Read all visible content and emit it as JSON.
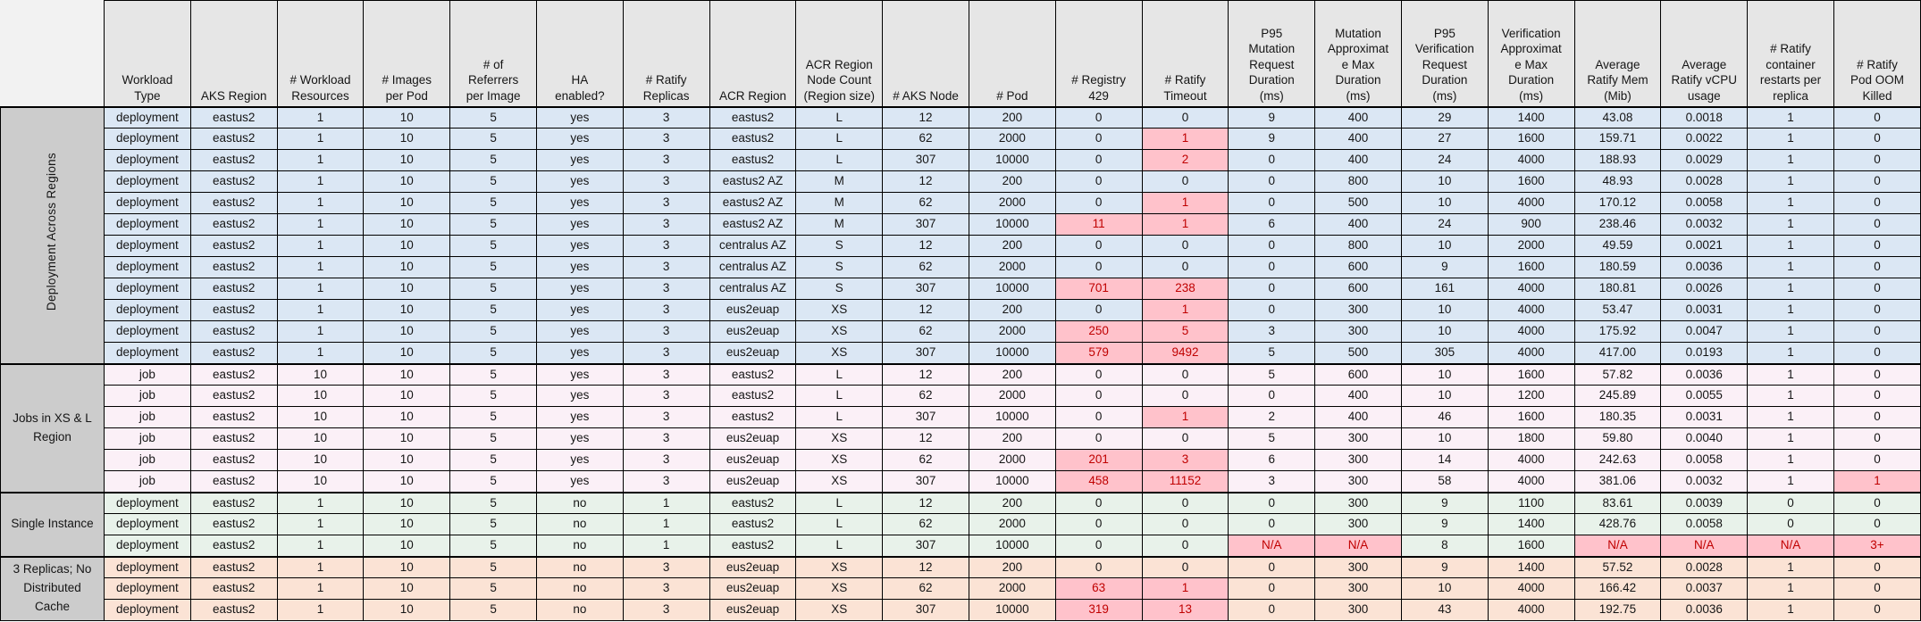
{
  "table": {
    "title": "Ratify performance benchmark results table",
    "colors": {
      "header_fill": "#E6E6E6",
      "corner_fill": "#F2F2F2",
      "group_label_fill": "#CCCCCC",
      "highlight_fill": "#FFC2CB",
      "highlight_text": "#C00000",
      "border": "#000000"
    },
    "columns": [
      {
        "key": "workload-type",
        "label": "Workload\nType"
      },
      {
        "key": "aks-region",
        "label": "AKS Region"
      },
      {
        "key": "workload-resources",
        "label": "# Workload\nResources"
      },
      {
        "key": "images-per-pod",
        "label": "# Images\nper Pod"
      },
      {
        "key": "referrers-per-image",
        "label": "# of\nReferrers\nper Image"
      },
      {
        "key": "ha-enabled",
        "label": "HA\nenabled?"
      },
      {
        "key": "ratify-replicas",
        "label": "# Ratify\nReplicas"
      },
      {
        "key": "acr-region",
        "label": "ACR Region"
      },
      {
        "key": "acr-region-node-count",
        "label": "ACR Region\nNode Count\n(Region size)"
      },
      {
        "key": "aks-node",
        "label": "# AKS Node"
      },
      {
        "key": "pod",
        "label": "# Pod"
      },
      {
        "key": "registry-429",
        "label": "# Registry\n429"
      },
      {
        "key": "ratify-timeout",
        "label": "# Ratify\nTimeout"
      },
      {
        "key": "p95-mutation-request-duration",
        "label": "P95\nMutation\nRequest\nDuration\n(ms)"
      },
      {
        "key": "mutation-approximate-max-duration",
        "label": "Mutation\nApproximat\ne Max\nDuration\n(ms)"
      },
      {
        "key": "p95-verification-request-duration",
        "label": "P95\nVerification\nRequest\nDuration\n(ms)"
      },
      {
        "key": "verification-approximate-max-duration",
        "label": "Verification\nApproximat\ne Max\nDuration\n(ms)"
      },
      {
        "key": "average-ratify-mem",
        "label": "Average\nRatify Mem\n(Mib)"
      },
      {
        "key": "average-ratify-vcpu",
        "label": "Average\nRatify vCPU\nusage"
      },
      {
        "key": "ratify-container-restarts",
        "label": "# Ratify\ncontainer\nrestarts per\nreplica"
      },
      {
        "key": "ratify-pod-oom-killed",
        "label": "# Ratify\nPod OOM\nKilled"
      }
    ],
    "groups": [
      {
        "label": "Deployment Across Regions",
        "label_orientation": "vertical",
        "fill": "#DBE7F4",
        "rows": [
          {
            "cells": [
              "deployment",
              "eastus2",
              "1",
              "10",
              "5",
              "yes",
              "3",
              "eastus2",
              "L",
              "12",
              "200",
              "0",
              "0",
              "9",
              "400",
              "29",
              "1400",
              "43.08",
              "0.0018",
              "1",
              "0"
            ],
            "highlighted": []
          },
          {
            "cells": [
              "deployment",
              "eastus2",
              "1",
              "10",
              "5",
              "yes",
              "3",
              "eastus2",
              "L",
              "62",
              "2000",
              "0",
              "1",
              "9",
              "400",
              "27",
              "1600",
              "159.71",
              "0.0022",
              "1",
              "0"
            ],
            "highlighted": [
              12
            ]
          },
          {
            "cells": [
              "deployment",
              "eastus2",
              "1",
              "10",
              "5",
              "yes",
              "3",
              "eastus2",
              "L",
              "307",
              "10000",
              "0",
              "2",
              "0",
              "400",
              "24",
              "4000",
              "188.93",
              "0.0029",
              "1",
              "0"
            ],
            "highlighted": [
              12
            ]
          },
          {
            "cells": [
              "deployment",
              "eastus2",
              "1",
              "10",
              "5",
              "yes",
              "3",
              "eastus2 AZ",
              "M",
              "12",
              "200",
              "0",
              "0",
              "0",
              "800",
              "10",
              "1600",
              "48.93",
              "0.0028",
              "1",
              "0"
            ],
            "highlighted": []
          },
          {
            "cells": [
              "deployment",
              "eastus2",
              "1",
              "10",
              "5",
              "yes",
              "3",
              "eastus2 AZ",
              "M",
              "62",
              "2000",
              "0",
              "1",
              "0",
              "500",
              "10",
              "4000",
              "170.12",
              "0.0058",
              "1",
              "0"
            ],
            "highlighted": [
              12
            ]
          },
          {
            "cells": [
              "deployment",
              "eastus2",
              "1",
              "10",
              "5",
              "yes",
              "3",
              "eastus2 AZ",
              "M",
              "307",
              "10000",
              "11",
              "1",
              "6",
              "400",
              "24",
              "900",
              "238.46",
              "0.0032",
              "1",
              "0"
            ],
            "highlighted": [
              11,
              12
            ]
          },
          {
            "cells": [
              "deployment",
              "eastus2",
              "1",
              "10",
              "5",
              "yes",
              "3",
              "centralus AZ",
              "S",
              "12",
              "200",
              "0",
              "0",
              "0",
              "800",
              "10",
              "2000",
              "49.59",
              "0.0021",
              "1",
              "0"
            ],
            "highlighted": []
          },
          {
            "cells": [
              "deployment",
              "eastus2",
              "1",
              "10",
              "5",
              "yes",
              "3",
              "centralus AZ",
              "S",
              "62",
              "2000",
              "0",
              "0",
              "0",
              "600",
              "9",
              "1600",
              "180.59",
              "0.0036",
              "1",
              "0"
            ],
            "highlighted": []
          },
          {
            "cells": [
              "deployment",
              "eastus2",
              "1",
              "10",
              "5",
              "yes",
              "3",
              "centralus AZ",
              "S",
              "307",
              "10000",
              "701",
              "238",
              "0",
              "600",
              "161",
              "4000",
              "180.81",
              "0.0026",
              "1",
              "0"
            ],
            "highlighted": [
              11,
              12
            ]
          },
          {
            "cells": [
              "deployment",
              "eastus2",
              "1",
              "10",
              "5",
              "yes",
              "3",
              "eus2euap",
              "XS",
              "12",
              "200",
              "0",
              "1",
              "0",
              "300",
              "10",
              "4000",
              "53.47",
              "0.0031",
              "1",
              "0"
            ],
            "highlighted": [
              12
            ]
          },
          {
            "cells": [
              "deployment",
              "eastus2",
              "1",
              "10",
              "5",
              "yes",
              "3",
              "eus2euap",
              "XS",
              "62",
              "2000",
              "250",
              "5",
              "3",
              "300",
              "10",
              "4000",
              "175.92",
              "0.0047",
              "1",
              "0"
            ],
            "highlighted": [
              11,
              12
            ]
          },
          {
            "cells": [
              "deployment",
              "eastus2",
              "1",
              "10",
              "5",
              "yes",
              "3",
              "eus2euap",
              "XS",
              "307",
              "10000",
              "579",
              "9492",
              "5",
              "500",
              "305",
              "4000",
              "417.00",
              "0.0193",
              "1",
              "0"
            ],
            "highlighted": [
              11,
              12
            ]
          }
        ]
      },
      {
        "label": "Jobs in XS & L\nRegion",
        "label_orientation": "horizontal",
        "fill": "#FBF0F7",
        "rows": [
          {
            "cells": [
              "job",
              "eastus2",
              "10",
              "10",
              "5",
              "yes",
              "3",
              "eastus2",
              "L",
              "12",
              "200",
              "0",
              "0",
              "5",
              "600",
              "10",
              "1600",
              "57.82",
              "0.0036",
              "1",
              "0"
            ],
            "highlighted": []
          },
          {
            "cells": [
              "job",
              "eastus2",
              "10",
              "10",
              "5",
              "yes",
              "3",
              "eastus2",
              "L",
              "62",
              "2000",
              "0",
              "0",
              "0",
              "400",
              "10",
              "1200",
              "245.89",
              "0.0055",
              "1",
              "0"
            ],
            "highlighted": []
          },
          {
            "cells": [
              "job",
              "eastus2",
              "10",
              "10",
              "5",
              "yes",
              "3",
              "eastus2",
              "L",
              "307",
              "10000",
              "0",
              "1",
              "2",
              "400",
              "46",
              "1600",
              "180.35",
              "0.0031",
              "1",
              "0"
            ],
            "highlighted": [
              12
            ]
          },
          {
            "cells": [
              "job",
              "eastus2",
              "10",
              "10",
              "5",
              "yes",
              "3",
              "eus2euap",
              "XS",
              "12",
              "200",
              "0",
              "0",
              "5",
              "300",
              "10",
              "1800",
              "59.80",
              "0.0040",
              "1",
              "0"
            ],
            "highlighted": []
          },
          {
            "cells": [
              "job",
              "eastus2",
              "10",
              "10",
              "5",
              "yes",
              "3",
              "eus2euap",
              "XS",
              "62",
              "2000",
              "201",
              "3",
              "6",
              "300",
              "14",
              "4000",
              "242.63",
              "0.0058",
              "1",
              "0"
            ],
            "highlighted": [
              11,
              12
            ]
          },
          {
            "cells": [
              "job",
              "eastus2",
              "10",
              "10",
              "5",
              "yes",
              "3",
              "eus2euap",
              "XS",
              "307",
              "10000",
              "458",
              "11152",
              "3",
              "300",
              "58",
              "4000",
              "381.06",
              "0.0032",
              "1",
              "1"
            ],
            "highlighted": [
              11,
              12,
              20
            ]
          }
        ]
      },
      {
        "label": "Single Instance",
        "label_orientation": "horizontal",
        "fill": "#E8F2EA",
        "rows": [
          {
            "cells": [
              "deployment",
              "eastus2",
              "1",
              "10",
              "5",
              "no",
              "1",
              "eastus2",
              "L",
              "12",
              "200",
              "0",
              "0",
              "0",
              "300",
              "9",
              "1100",
              "83.61",
              "0.0039",
              "0",
              "0"
            ],
            "highlighted": []
          },
          {
            "cells": [
              "deployment",
              "eastus2",
              "1",
              "10",
              "5",
              "no",
              "1",
              "eastus2",
              "L",
              "62",
              "2000",
              "0",
              "0",
              "0",
              "300",
              "9",
              "1400",
              "428.76",
              "0.0058",
              "0",
              "0"
            ],
            "highlighted": []
          },
          {
            "cells": [
              "deployment",
              "eastus2",
              "1",
              "10",
              "5",
              "no",
              "1",
              "eastus2",
              "L",
              "307",
              "10000",
              "0",
              "0",
              "N/A",
              "N/A",
              "8",
              "1600",
              "N/A",
              "N/A",
              "N/A",
              "3+"
            ],
            "highlighted": [
              13,
              14,
              17,
              18,
              19,
              20
            ]
          }
        ]
      },
      {
        "label": "3 Replicas; No\nDistributed\nCache",
        "label_orientation": "horizontal",
        "fill": "#FBE3D5",
        "rows": [
          {
            "cells": [
              "deployment",
              "eastus2",
              "1",
              "10",
              "5",
              "no",
              "3",
              "eus2euap",
              "XS",
              "12",
              "200",
              "0",
              "0",
              "0",
              "300",
              "9",
              "1400",
              "57.52",
              "0.0028",
              "1",
              "0"
            ],
            "highlighted": []
          },
          {
            "cells": [
              "deployment",
              "eastus2",
              "1",
              "10",
              "5",
              "no",
              "3",
              "eus2euap",
              "XS",
              "62",
              "2000",
              "63",
              "1",
              "0",
              "300",
              "10",
              "4000",
              "166.42",
              "0.0037",
              "1",
              "0"
            ],
            "highlighted": [
              11,
              12
            ]
          },
          {
            "cells": [
              "deployment",
              "eastus2",
              "1",
              "10",
              "5",
              "no",
              "3",
              "eus2euap",
              "XS",
              "307",
              "10000",
              "319",
              "13",
              "0",
              "300",
              "43",
              "4000",
              "192.75",
              "0.0036",
              "1",
              "0"
            ],
            "highlighted": [
              11,
              12
            ]
          }
        ]
      }
    ]
  }
}
